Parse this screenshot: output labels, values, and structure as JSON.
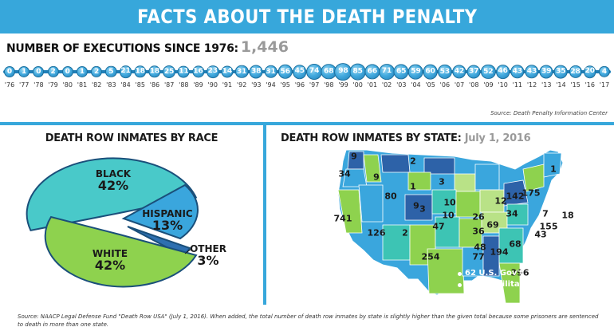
{
  "title": "FACTS ABOUT THE DEATH PENALTY",
  "executions": {
    "label": "NUMBER OF EXECUTIONS SINCE 1976:",
    "total": "1,446",
    "years": [
      "'76",
      "'77",
      "'78",
      "'79",
      "'80",
      "'81",
      "'82",
      "'83",
      "'84",
      "'85",
      "'86",
      "'87",
      "'88",
      "'89",
      "'90",
      "'91",
      "'92",
      "'93",
      "'94",
      "'95",
      "'96",
      "'97",
      "'98",
      "'99",
      "'00",
      "'01",
      "'02",
      "'03",
      "'04",
      "'05",
      "'06",
      "'07",
      "'08",
      "'09",
      "'10",
      "'11",
      "'12",
      "'13",
      "'14",
      "'15",
      "'16",
      "'17"
    ],
    "counts": [
      0,
      1,
      0,
      2,
      0,
      1,
      2,
      5,
      21,
      18,
      18,
      25,
      11,
      16,
      23,
      14,
      31,
      38,
      31,
      56,
      45,
      74,
      68,
      98,
      85,
      66,
      71,
      65,
      59,
      60,
      53,
      42,
      37,
      52,
      46,
      43,
      43,
      39,
      35,
      28,
      20,
      4
    ],
    "source": "Source: Death Penalty Information Center"
  },
  "race": {
    "title": "DEATH ROW INMATES BY RACE",
    "slices": [
      {
        "name": "BLACK",
        "pct": "42%",
        "value": 42,
        "color": "#49c9c9"
      },
      {
        "name": "HISPANIC",
        "pct": "13%",
        "value": 13,
        "color": "#3aa6dd"
      },
      {
        "name": "OTHER",
        "pct": "3%",
        "value": 3,
        "color": "#2d6fb0"
      },
      {
        "name": "WHITE",
        "pct": "42%",
        "value": 42,
        "color": "#8ed24e"
      }
    ]
  },
  "states": {
    "title": "DEATH ROW INMATES BY STATE:",
    "date": "July 1, 2016",
    "labels": [
      "9",
      "2",
      "1",
      "34",
      "9",
      "1",
      "3",
      "80",
      "9",
      "10",
      "3",
      "10",
      "741",
      "26",
      "12",
      "142",
      "175",
      "34",
      "7",
      "18",
      "126",
      "2",
      "47",
      "36",
      "69",
      "155",
      "43",
      "48",
      "194",
      "68",
      "77",
      "254",
      "396"
    ],
    "colors": {
      "dark": "#2d62a8",
      "mid": "#3aa6dd",
      "teal": "#3dc4b4",
      "green": "#8ed24e",
      "light": "#b9e287"
    },
    "legend": [
      "62 U.S. Gov't",
      "6 U.S. Military"
    ]
  },
  "footer": "Source: NAACP Legal Defense Fund \"Death Row USA\" (July 1, 2016). When added, the total number of death row inmates by state is slightly higher than the given total because some prisoners are sentenced to death in more than one state."
}
